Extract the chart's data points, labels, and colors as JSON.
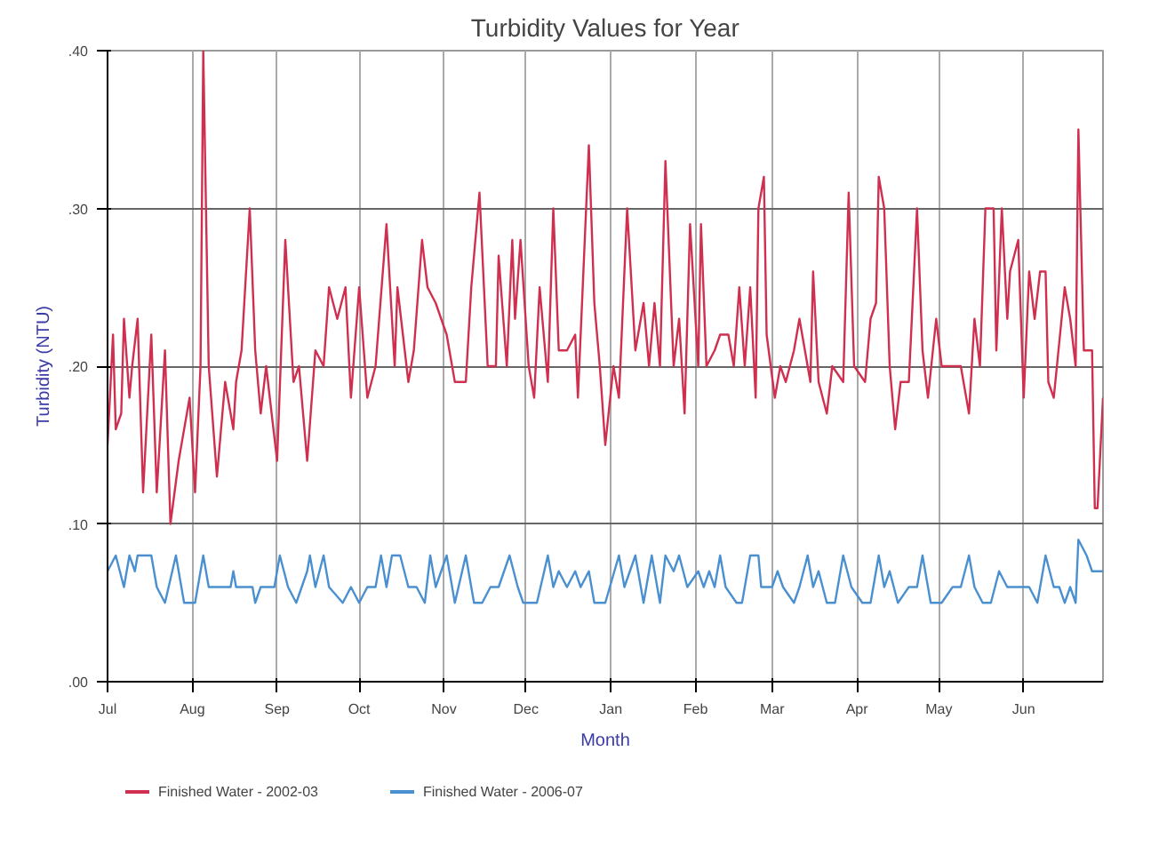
{
  "chart_data": {
    "type": "line",
    "title": "Turbidity Values for Year",
    "xlabel": "Month",
    "ylabel": "Turbidity (NTU)",
    "xlim": [
      "2002-07-01",
      "2003-06-30"
    ],
    "xticks": [
      {
        "value": "2002-07-01",
        "label": "Jul"
      },
      {
        "value": "2002-08-01",
        "label": "Aug"
      },
      {
        "value": "2002-09-01",
        "label": "Sep"
      },
      {
        "value": "2002-10-01",
        "label": "Oct"
      },
      {
        "value": "2002-11-01",
        "label": "Nov"
      },
      {
        "value": "2002-12-01",
        "label": "Dec"
      },
      {
        "value": "2003-01-01",
        "label": "Jan"
      },
      {
        "value": "2003-02-01",
        "label": "Feb"
      },
      {
        "value": "2003-03-01",
        "label": "Mar"
      },
      {
        "value": "2003-04-01",
        "label": "Apr"
      },
      {
        "value": "2003-05-01",
        "label": "May"
      },
      {
        "value": "2003-06-01",
        "label": "Jun"
      }
    ],
    "ylim": [
      0,
      0.4
    ],
    "yticks": [
      {
        "value": 0,
        "label": ".00"
      },
      {
        "value": 0.1,
        "label": ".10"
      },
      {
        "value": 0.2,
        "label": ".20"
      },
      {
        "value": 0.3,
        "label": ".30"
      },
      {
        "value": 0.4,
        "label": ".40"
      }
    ],
    "grid": true,
    "legend": "bottom",
    "marker": "none",
    "line_style": "solid",
    "series": [
      {
        "name": "Finished Water - 2002-03",
        "color": "#d0304f",
        "x": [
          "2002-07-01",
          "2002-07-03",
          "2002-07-04",
          "2002-07-06",
          "2002-07-07",
          "2002-07-09",
          "2002-07-10",
          "2002-07-12",
          "2002-07-14",
          "2002-07-17",
          "2002-07-19",
          "2002-07-22",
          "2002-07-24",
          "2002-07-27",
          "2002-07-31",
          "2002-08-02",
          "2002-08-04",
          "2002-08-05",
          "2002-08-07",
          "2002-08-10",
          "2002-08-13",
          "2002-08-16",
          "2002-08-17",
          "2002-08-19",
          "2002-08-22",
          "2002-08-24",
          "2002-08-26",
          "2002-08-28",
          "2002-09-01",
          "2002-09-04",
          "2002-09-07",
          "2002-09-09",
          "2002-09-12",
          "2002-09-15",
          "2002-09-18",
          "2002-09-20",
          "2002-09-23",
          "2002-09-26",
          "2002-09-28",
          "2002-10-01",
          "2002-10-04",
          "2002-10-07",
          "2002-10-11",
          "2002-10-14",
          "2002-10-15",
          "2002-10-19",
          "2002-10-21",
          "2002-10-24",
          "2002-10-26",
          "2002-10-29",
          "2002-11-02",
          "2002-11-05",
          "2002-11-09",
          "2002-11-11",
          "2002-11-14",
          "2002-11-17",
          "2002-11-20",
          "2002-11-21",
          "2002-11-24",
          "2002-11-26",
          "2002-11-27",
          "2002-11-29",
          "2002-12-02",
          "2002-12-04",
          "2002-12-06",
          "2002-12-09",
          "2002-12-11",
          "2002-12-13",
          "2002-12-16",
          "2002-12-19",
          "2002-12-20",
          "2002-12-24",
          "2002-12-26",
          "2002-12-28",
          "2002-12-30",
          "2003-01-02",
          "2003-01-04",
          "2003-01-07",
          "2003-01-10",
          "2003-01-13",
          "2003-01-15",
          "2003-01-17",
          "2003-01-19",
          "2003-01-21",
          "2003-01-24",
          "2003-01-26",
          "2003-01-28",
          "2003-01-30",
          "2003-02-02",
          "2003-02-03",
          "2003-02-05",
          "2003-02-08",
          "2003-02-10",
          "2003-02-13",
          "2003-02-15",
          "2003-02-17",
          "2003-02-19",
          "2003-02-21",
          "2003-02-23",
          "2003-02-24",
          "2003-02-26",
          "2003-02-27",
          "2003-03-02",
          "2003-03-04",
          "2003-03-06",
          "2003-03-09",
          "2003-03-11",
          "2003-03-13",
          "2003-03-15",
          "2003-03-16",
          "2003-03-18",
          "2003-03-21",
          "2003-03-23",
          "2003-03-27",
          "2003-03-29",
          "2003-03-31",
          "2003-04-04",
          "2003-04-06",
          "2003-04-08",
          "2003-04-09",
          "2003-04-11",
          "2003-04-13",
          "2003-04-15",
          "2003-04-17",
          "2003-04-20",
          "2003-04-23",
          "2003-04-25",
          "2003-04-27",
          "2003-04-30",
          "2003-05-02",
          "2003-05-06",
          "2003-05-09",
          "2003-05-12",
          "2003-05-14",
          "2003-05-16",
          "2003-05-18",
          "2003-05-21",
          "2003-05-22",
          "2003-05-24",
          "2003-05-26",
          "2003-05-27",
          "2003-05-30",
          "2003-06-01",
          "2003-06-03",
          "2003-06-05",
          "2003-06-07",
          "2003-06-09",
          "2003-06-10",
          "2003-06-12",
          "2003-06-16",
          "2003-06-18",
          "2003-06-20",
          "2003-06-21",
          "2003-06-23",
          "2003-06-26",
          "2003-06-27",
          "2003-06-28",
          "2003-06-30"
        ],
        "values": [
          0.15,
          0.22,
          0.16,
          0.17,
          0.23,
          0.18,
          0.2,
          0.23,
          0.12,
          0.22,
          0.12,
          0.21,
          0.1,
          0.14,
          0.18,
          0.12,
          0.2,
          0.4,
          0.2,
          0.13,
          0.19,
          0.16,
          0.19,
          0.21,
          0.3,
          0.21,
          0.17,
          0.2,
          0.14,
          0.28,
          0.19,
          0.2,
          0.14,
          0.21,
          0.2,
          0.25,
          0.23,
          0.25,
          0.18,
          0.25,
          0.18,
          0.2,
          0.29,
          0.2,
          0.25,
          0.19,
          0.21,
          0.28,
          0.25,
          0.24,
          0.22,
          0.19,
          0.19,
          0.25,
          0.31,
          0.2,
          0.2,
          0.27,
          0.2,
          0.28,
          0.23,
          0.28,
          0.2,
          0.18,
          0.25,
          0.19,
          0.3,
          0.21,
          0.21,
          0.22,
          0.18,
          0.34,
          0.24,
          0.2,
          0.15,
          0.2,
          0.18,
          0.3,
          0.21,
          0.24,
          0.2,
          0.24,
          0.2,
          0.33,
          0.2,
          0.23,
          0.17,
          0.29,
          0.2,
          0.29,
          0.2,
          0.21,
          0.22,
          0.22,
          0.2,
          0.25,
          0.2,
          0.25,
          0.18,
          0.3,
          0.32,
          0.22,
          0.18,
          0.2,
          0.19,
          0.21,
          0.23,
          0.21,
          0.19,
          0.26,
          0.19,
          0.17,
          0.2,
          0.19,
          0.31,
          0.2,
          0.19,
          0.23,
          0.24,
          0.32,
          0.3,
          0.2,
          0.16,
          0.19,
          0.19,
          0.3,
          0.21,
          0.18,
          0.23,
          0.2,
          0.2,
          0.2,
          0.17,
          0.23,
          0.2,
          0.3,
          0.3,
          0.21,
          0.3,
          0.23,
          0.26,
          0.28,
          0.18,
          0.26,
          0.23,
          0.26,
          0.26,
          0.19,
          0.18,
          0.25,
          0.23,
          0.2,
          0.35,
          0.21,
          0.21,
          0.11,
          0.11,
          0.18
        ]
      },
      {
        "name": "Finished Water - 2006-07",
        "color": "#4a90d0",
        "x": [
          "2002-07-01",
          "2002-07-04",
          "2002-07-07",
          "2002-07-09",
          "2002-07-11",
          "2002-07-12",
          "2002-07-17",
          "2002-07-19",
          "2002-07-22",
          "2002-07-26",
          "2002-07-29",
          "2002-08-02",
          "2002-08-05",
          "2002-08-07",
          "2002-08-15",
          "2002-08-16",
          "2002-08-17",
          "2002-08-23",
          "2002-08-24",
          "2002-08-26",
          "2002-08-31",
          "2002-09-02",
          "2002-09-05",
          "2002-09-08",
          "2002-09-12",
          "2002-09-13",
          "2002-09-15",
          "2002-09-18",
          "2002-09-20",
          "2002-09-25",
          "2002-09-28",
          "2002-10-01",
          "2002-10-04",
          "2002-10-07",
          "2002-10-09",
          "2002-10-11",
          "2002-10-13",
          "2002-10-16",
          "2002-10-19",
          "2002-10-22",
          "2002-10-25",
          "2002-10-27",
          "2002-10-29",
          "2002-11-02",
          "2002-11-05",
          "2002-11-09",
          "2002-11-12",
          "2002-11-15",
          "2002-11-18",
          "2002-11-21",
          "2002-11-25",
          "2002-11-28",
          "2002-11-30",
          "2002-12-05",
          "2002-12-09",
          "2002-12-11",
          "2002-12-13",
          "2002-12-16",
          "2002-12-19",
          "2002-12-21",
          "2002-12-24",
          "2002-12-26",
          "2002-12-30",
          "2003-01-04",
          "2003-01-06",
          "2003-01-10",
          "2003-01-13",
          "2003-01-16",
          "2003-01-19",
          "2003-01-21",
          "2003-01-24",
          "2003-01-26",
          "2003-01-29",
          "2003-02-02",
          "2003-02-04",
          "2003-02-06",
          "2003-02-08",
          "2003-02-10",
          "2003-02-12",
          "2003-02-16",
          "2003-02-18",
          "2003-02-21",
          "2003-02-24",
          "2003-02-25",
          "2003-03-01",
          "2003-03-03",
          "2003-03-05",
          "2003-03-09",
          "2003-03-11",
          "2003-03-14",
          "2003-03-16",
          "2003-03-18",
          "2003-03-21",
          "2003-03-24",
          "2003-03-27",
          "2003-03-30",
          "2003-04-03",
          "2003-04-06",
          "2003-04-09",
          "2003-04-11",
          "2003-04-13",
          "2003-04-16",
          "2003-04-20",
          "2003-04-23",
          "2003-04-25",
          "2003-04-28",
          "2003-05-02",
          "2003-05-06",
          "2003-05-09",
          "2003-05-12",
          "2003-05-14",
          "2003-05-17",
          "2003-05-20",
          "2003-05-23",
          "2003-05-26",
          "2003-05-30",
          "2003-06-03",
          "2003-06-06",
          "2003-06-09",
          "2003-06-12",
          "2003-06-14",
          "2003-06-16",
          "2003-06-18",
          "2003-06-20",
          "2003-06-21",
          "2003-06-24",
          "2003-06-26",
          "2003-06-30"
        ],
        "values": [
          0.07,
          0.08,
          0.06,
          0.08,
          0.07,
          0.08,
          0.08,
          0.06,
          0.05,
          0.08,
          0.05,
          0.05,
          0.08,
          0.06,
          0.06,
          0.07,
          0.06,
          0.06,
          0.05,
          0.06,
          0.06,
          0.08,
          0.06,
          0.05,
          0.07,
          0.08,
          0.06,
          0.08,
          0.06,
          0.05,
          0.06,
          0.05,
          0.06,
          0.06,
          0.08,
          0.06,
          0.08,
          0.08,
          0.06,
          0.06,
          0.05,
          0.08,
          0.06,
          0.08,
          0.05,
          0.08,
          0.05,
          0.05,
          0.06,
          0.06,
          0.08,
          0.06,
          0.05,
          0.05,
          0.08,
          0.06,
          0.07,
          0.06,
          0.07,
          0.06,
          0.07,
          0.05,
          0.05,
          0.08,
          0.06,
          0.08,
          0.05,
          0.08,
          0.05,
          0.08,
          0.07,
          0.08,
          0.06,
          0.07,
          0.06,
          0.07,
          0.06,
          0.08,
          0.06,
          0.05,
          0.05,
          0.08,
          0.08,
          0.06,
          0.06,
          0.07,
          0.06,
          0.05,
          0.06,
          0.08,
          0.06,
          0.07,
          0.05,
          0.05,
          0.08,
          0.06,
          0.05,
          0.05,
          0.08,
          0.06,
          0.07,
          0.05,
          0.06,
          0.06,
          0.08,
          0.05,
          0.05,
          0.06,
          0.06,
          0.08,
          0.06,
          0.05,
          0.05,
          0.07,
          0.06,
          0.06,
          0.06,
          0.05,
          0.08,
          0.06,
          0.06,
          0.05,
          0.06,
          0.05,
          0.09,
          0.08,
          0.07,
          0.07
        ]
      }
    ]
  }
}
